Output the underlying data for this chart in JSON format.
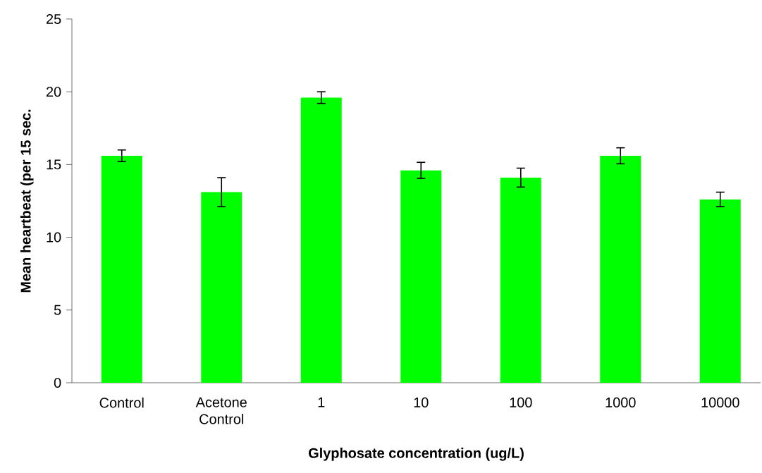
{
  "chart_data": {
    "type": "bar",
    "xlabel": "Glyphosate concentration (ug/L)",
    "ylabel": "Mean heartbeat (per 15 sec.",
    "categories": [
      "Control",
      "Acetone Control",
      "1",
      "10",
      "100",
      "1000",
      "10000"
    ],
    "values": [
      15.6,
      13.1,
      19.6,
      14.6,
      14.1,
      15.6,
      12.6
    ],
    "errors": [
      0.4,
      1.0,
      0.4,
      0.55,
      0.65,
      0.55,
      0.5
    ],
    "color": "#00ff00",
    "ylim": [
      0,
      25
    ],
    "yticks": [
      0,
      5,
      10,
      15,
      20,
      25
    ]
  }
}
